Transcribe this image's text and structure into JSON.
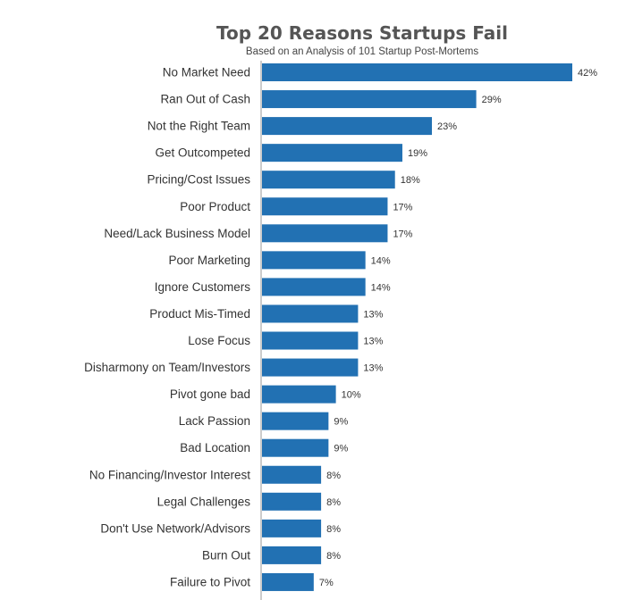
{
  "chart_data": {
    "type": "bar",
    "orientation": "horizontal",
    "title": "Top 20 Reasons Startups Fail",
    "subtitle": "Based on an Analysis of 101 Startup Post-Mortems",
    "categories": [
      "No Market Need",
      "Ran Out of Cash",
      "Not the Right Team",
      "Get Outcompeted",
      "Pricing/Cost Issues",
      "Poor Product",
      "Need/Lack Business Model",
      "Poor Marketing",
      "Ignore Customers",
      "Product Mis-Timed",
      "Lose Focus",
      "Disharmony on Team/Investors",
      "Pivot gone bad",
      "Lack Passion",
      "Bad Location",
      "No Financing/Investor Interest",
      "Legal Challenges",
      "Don't Use Network/Advisors",
      "Burn Out",
      "Failure to Pivot"
    ],
    "values": [
      42,
      29,
      23,
      19,
      18,
      17,
      17,
      14,
      14,
      13,
      13,
      13,
      10,
      9,
      9,
      8,
      8,
      8,
      8,
      7
    ],
    "value_labels": [
      "42%",
      "29%",
      "23%",
      "19%",
      "18%",
      "17%",
      "17%",
      "14%",
      "14%",
      "13%",
      "13%",
      "13%",
      "10%",
      "9%",
      "9%",
      "8%",
      "8%",
      "8%",
      "8%",
      "7%"
    ],
    "xlim": [
      0,
      42
    ],
    "bar_color": "#2271b3",
    "grid": false,
    "legend": "none"
  }
}
